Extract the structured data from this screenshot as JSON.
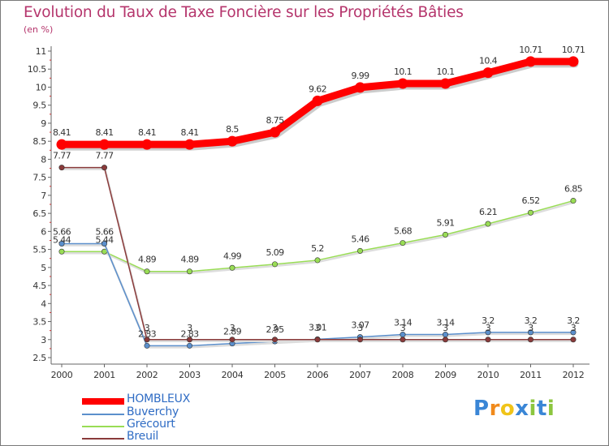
{
  "header": {
    "title": "Evolution du Taux de Taxe Foncière sur les Propriétés Bâties",
    "unit": "(en %)"
  },
  "chart_data": {
    "type": "line",
    "title": "Evolution du Taux de Taxe Foncière sur les Propriétés Bâties",
    "ylabel": "(en %)",
    "xlabel": "",
    "ylim": [
      2.5,
      11
    ],
    "y_ticks": [
      "2.5",
      "3",
      "3.5",
      "4",
      "4.5",
      "5",
      "5.5",
      "6",
      "6.5",
      "7",
      "7.5",
      "8",
      "8.5",
      "9",
      "9.5",
      "10",
      "10.5",
      "11"
    ],
    "categories": [
      "2000",
      "2001",
      "2002",
      "2003",
      "2004",
      "2005",
      "2006",
      "2007",
      "2008",
      "2009",
      "2010",
      "2011",
      "2012"
    ],
    "grid": false,
    "legend_position": "bottom-left",
    "series": [
      {
        "name": "HOMBLEUX",
        "color": "#ff0000",
        "values": [
          8.41,
          8.41,
          8.41,
          8.41,
          8.5,
          8.75,
          9.62,
          9.99,
          10.1,
          10.1,
          10.4,
          10.71,
          10.71
        ],
        "labels": [
          "8.41",
          "8.41",
          "8.41",
          "8.41",
          "8.5",
          "8.75",
          "9.62",
          "9.99",
          "10.1",
          "10.1",
          "10.4",
          "10.71",
          "10.71"
        ]
      },
      {
        "name": "Buverchy",
        "color": "#5b8fcc",
        "values": [
          5.66,
          5.66,
          2.83,
          2.83,
          2.89,
          2.95,
          3.01,
          3.07,
          3.14,
          3.14,
          3.2,
          3.2,
          3.2
        ],
        "labels": [
          "5.66",
          "5.66",
          "2.83",
          "2.83",
          "2.89",
          "2.95",
          "3.01",
          "3.07",
          "3.14",
          "3.14",
          "3.2",
          "3.2",
          "3.2"
        ]
      },
      {
        "name": "Grécourt",
        "color": "#99dd55",
        "values": [
          5.44,
          5.44,
          4.89,
          4.89,
          4.99,
          5.09,
          5.2,
          5.46,
          5.68,
          5.91,
          6.21,
          6.52,
          6.85
        ],
        "labels": [
          "5.44",
          "5.44",
          "4.89",
          "4.89",
          "4.99",
          "5.09",
          "5.2",
          "5.46",
          "5.68",
          "5.91",
          "6.21",
          "6.52",
          "6.85"
        ]
      },
      {
        "name": "Breuil",
        "color": "#8a3a3a",
        "values": [
          7.77,
          7.77,
          3,
          3,
          3,
          3,
          3,
          3,
          3,
          3,
          3,
          3,
          3
        ],
        "labels": [
          "7.77",
          "7.77",
          "3",
          "3",
          "3",
          "3",
          "3",
          "3",
          "3",
          "3",
          "3",
          "3",
          "3"
        ]
      }
    ]
  },
  "legend": {
    "items": [
      {
        "label": "HOMBLEUX",
        "color": "#ff0000"
      },
      {
        "label": "Buverchy",
        "color": "#5b8fcc"
      },
      {
        "label": "Grécourt",
        "color": "#99dd55"
      },
      {
        "label": "Breuil",
        "color": "#8a3a3a"
      }
    ]
  },
  "logo": {
    "text": "Proxiti",
    "letters": [
      "P",
      "r",
      "o",
      "x",
      "i",
      "t",
      "i"
    ],
    "colors": [
      "#3a86d6",
      "#f08a1c",
      "#f0c419",
      "#3a86d6",
      "#8cc63f",
      "#3a86d6",
      "#8cc63f"
    ]
  }
}
